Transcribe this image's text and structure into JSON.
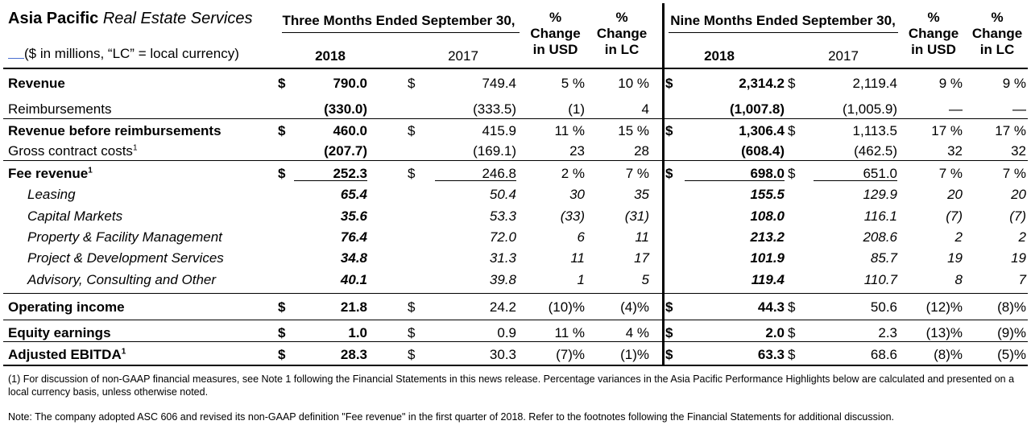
{
  "header": {
    "title_bold": "Asia Pacific",
    "title_italic": "Real Estate Services",
    "subtitle": "($ in millions, “LC” = local currency)",
    "three_months": "Three Months Ended September 30,",
    "nine_months": "Nine Months Ended September 30,",
    "year_2018": "2018",
    "year_2017": "2017",
    "pct_symbol": "%",
    "change": "Change",
    "in_usd": "in USD",
    "in_lc": "in LC"
  },
  "currency_symbol": "$",
  "rows": [
    {
      "label": "Revenue",
      "sup": "",
      "style": "bold",
      "dollar": true,
      "q18": "790.0",
      "q17": "749.4",
      "qusd": "5 %",
      "qlc": "10 %",
      "n18": "2,314.2",
      "n17": "2,119.4",
      "nusd": "9 %",
      "nlc": "9 %"
    },
    {
      "label": "Reimbursements",
      "sup": "",
      "style": "normal",
      "dollar": false,
      "q18": "(330.0)",
      "q17": "(333.5)",
      "qusd": "(1)",
      "qlc": "4",
      "n18": "(1,007.8)",
      "n17": "(1,005.9)",
      "nusd": "—",
      "nlc": "—"
    },
    {
      "label": "Revenue before reimbursements",
      "sup": "",
      "style": "bold",
      "dollar": true,
      "q18": "460.0",
      "q17": "415.9",
      "qusd": "11 %",
      "qlc": "15 %",
      "n18": "1,306.4",
      "n17": "1,113.5",
      "nusd": "17 %",
      "nlc": "17 %"
    },
    {
      "label": "Gross contract costs",
      "sup": "1",
      "style": "normal",
      "dollar": false,
      "q18": "(207.7)",
      "q17": "(169.1)",
      "qusd": "23",
      "qlc": "28",
      "n18": "(608.4)",
      "n17": "(462.5)",
      "nusd": "32",
      "nlc": "32"
    },
    {
      "label": "Fee revenue",
      "sup": "1",
      "style": "bold",
      "dollar": true,
      "q18": "252.3",
      "q17": "246.8",
      "qusd": "2 %",
      "qlc": "7 %",
      "n18": "698.0",
      "n17": "651.0",
      "nusd": "7 %",
      "nlc": "7 %"
    },
    {
      "label": "Leasing",
      "sup": "",
      "style": "italic",
      "dollar": false,
      "q18": "65.4",
      "q17": "50.4",
      "qusd": "30",
      "qlc": "35",
      "n18": "155.5",
      "n17": "129.9",
      "nusd": "20",
      "nlc": "20"
    },
    {
      "label": "Capital Markets",
      "sup": "",
      "style": "italic",
      "dollar": false,
      "q18": "35.6",
      "q17": "53.3",
      "qusd": "(33)",
      "qlc": "(31)",
      "n18": "108.0",
      "n17": "116.1",
      "nusd": "(7)",
      "nlc": "(7)"
    },
    {
      "label": "Property & Facility Management",
      "sup": "",
      "style": "italic",
      "dollar": false,
      "q18": "76.4",
      "q17": "72.0",
      "qusd": "6",
      "qlc": "11",
      "n18": "213.2",
      "n17": "208.6",
      "nusd": "2",
      "nlc": "2"
    },
    {
      "label": "Project & Development Services",
      "sup": "",
      "style": "italic",
      "dollar": false,
      "q18": "34.8",
      "q17": "31.3",
      "qusd": "11",
      "qlc": "17",
      "n18": "101.9",
      "n17": "85.7",
      "nusd": "19",
      "nlc": "19"
    },
    {
      "label": "Advisory, Consulting and Other",
      "sup": "",
      "style": "italic",
      "dollar": false,
      "q18": "40.1",
      "q17": "39.8",
      "qusd": "1",
      "qlc": "5",
      "n18": "119.4",
      "n17": "110.7",
      "nusd": "8",
      "nlc": "7"
    },
    {
      "label": "Operating income",
      "sup": "",
      "style": "bold",
      "dollar": true,
      "q18": "21.8",
      "q17": "24.2",
      "qusd": "(10)%",
      "qlc": "(4)%",
      "n18": "44.3",
      "n17": "50.6",
      "nusd": "(12)%",
      "nlc": "(8)%"
    },
    {
      "label": "Equity earnings",
      "sup": "",
      "style": "bold",
      "dollar": true,
      "q18": "1.0",
      "q17": "0.9",
      "qusd": "11 %",
      "qlc": "4 %",
      "n18": "2.0",
      "n17": "2.3",
      "nusd": "(13)%",
      "nlc": "(9)%"
    },
    {
      "label": "Adjusted EBITDA",
      "sup": "1",
      "style": "bold",
      "dollar": true,
      "q18": "28.3",
      "q17": "30.3",
      "qusd": "(7)%",
      "qlc": "(1)%",
      "n18": "63.3",
      "n17": "68.6",
      "nusd": "(8)%",
      "nlc": "(5)%"
    }
  ],
  "footnotes": {
    "note1": "(1) For discussion of non-GAAP financial measures, see Note 1 following the Financial Statements in this news release. Percentage variances in the Asia Pacific Performance Highlights below are calculated and presented on a local currency basis, unless otherwise noted.",
    "note2": "Note: The company adopted ASC 606 and revised its non-GAAP definition \"Fee revenue\" in the first quarter of 2018. Refer to the footnotes following the Financial Statements for additional discussion."
  }
}
